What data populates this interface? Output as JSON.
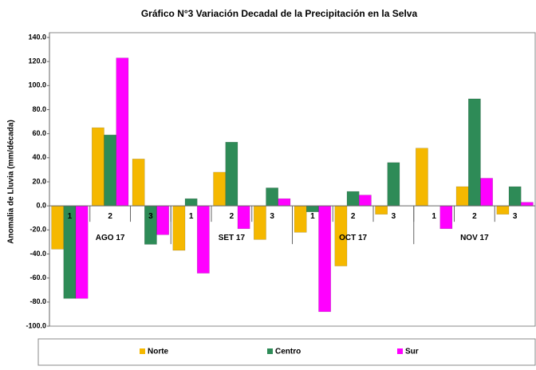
{
  "chart_data": {
    "type": "bar",
    "title": "Gráfico N°3 Variación Decadal de la Precipitación en la Selva",
    "y_label": "Anomalia de Lluvia (mm/década)",
    "categories": [
      "1",
      "2",
      "3",
      "1",
      "2",
      "3",
      "1",
      "2",
      "3",
      "1",
      "2",
      "3"
    ],
    "group_labels": [
      "AGO 17",
      "SET 17",
      "OCT 17",
      "NOV 17"
    ],
    "series": [
      {
        "name": "Norte",
        "color": "#f5b800",
        "values": [
          -36,
          65,
          39,
          -37,
          28,
          -28,
          -22,
          -50,
          -7,
          48,
          16,
          -7
        ]
      },
      {
        "name": "Centro",
        "color": "#2e8b57",
        "values": [
          -77,
          59,
          -32,
          6,
          53,
          15,
          -5,
          12,
          36,
          0,
          89,
          16
        ]
      },
      {
        "name": "Sur",
        "color": "#ff00ff",
        "values": [
          -77,
          123,
          -24,
          -56,
          -19,
          6,
          -88,
          9,
          0,
          -19,
          23,
          3
        ]
      }
    ],
    "ylim": [
      -100,
      140
    ],
    "yticks": [
      {
        "value": -100,
        "label": "-100.0"
      },
      {
        "value": -80,
        "label": "-80.0"
      },
      {
        "value": -60,
        "label": "-60.0"
      },
      {
        "value": -40,
        "label": "-40.0"
      },
      {
        "value": -20,
        "label": "-20.0"
      },
      {
        "value": 0,
        "label": "0.0"
      },
      {
        "value": 20,
        "label": "20.0"
      },
      {
        "value": 40,
        "label": "40.0"
      },
      {
        "value": 60,
        "label": "60.0"
      },
      {
        "value": 80,
        "label": "80.0"
      },
      {
        "value": 100,
        "label": "100.0"
      },
      {
        "value": 120,
        "label": "120.0"
      },
      {
        "value": 140,
        "label": "140.0"
      }
    ],
    "grid": false,
    "legend": "bottom"
  }
}
